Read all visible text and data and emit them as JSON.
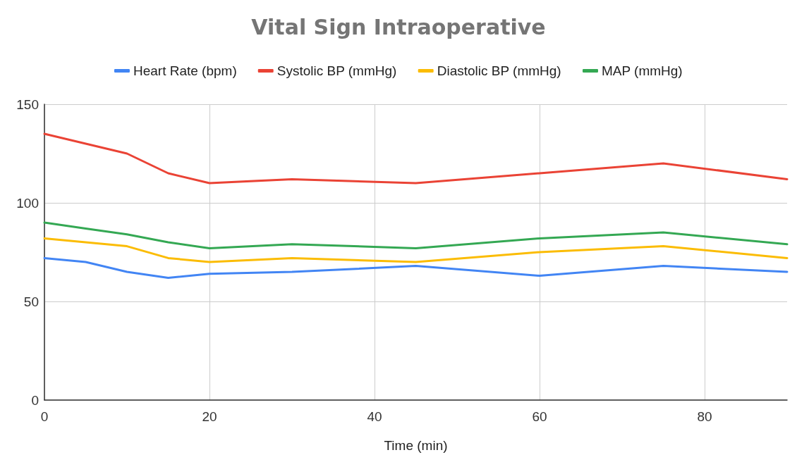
{
  "chart_data": {
    "type": "line",
    "title": "Vital Sign Intraoperative",
    "xlabel": "Time (min)",
    "x": [
      0,
      5,
      10,
      15,
      20,
      30,
      45,
      60,
      75,
      90
    ],
    "series": [
      {
        "name": "Heart Rate (bpm)",
        "color": "#4285f4",
        "values": [
          72,
          70,
          65,
          62,
          64,
          65,
          68,
          63,
          68,
          65
        ]
      },
      {
        "name": "Systolic BP (mmHg)",
        "color": "#ea4335",
        "values": [
          135,
          130,
          125,
          115,
          110,
          112,
          110,
          115,
          120,
          112
        ]
      },
      {
        "name": "Diastolic BP (mmHg)",
        "color": "#fbbc04",
        "values": [
          82,
          80,
          78,
          72,
          70,
          72,
          70,
          75,
          78,
          72
        ]
      },
      {
        "name": "MAP (mmHg)",
        "color": "#34a853",
        "values": [
          90,
          87,
          84,
          80,
          77,
          79,
          77,
          82,
          85,
          79
        ]
      }
    ],
    "xlim": [
      0,
      90
    ],
    "xticks": [
      0,
      20,
      40,
      60,
      80
    ],
    "ylim": [
      0,
      150
    ],
    "yticks": [
      0,
      50,
      100,
      150
    ],
    "grid": true,
    "legend": "top",
    "marker": "none",
    "line_style": "solid"
  }
}
